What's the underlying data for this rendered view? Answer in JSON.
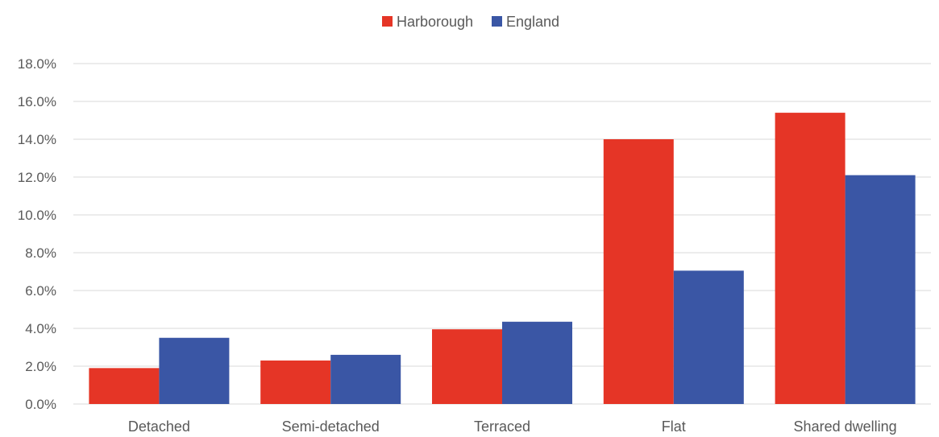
{
  "chart_data": {
    "type": "bar",
    "title": "",
    "xlabel": "",
    "ylabel": "",
    "categories": [
      "Detached",
      "Semi-detached",
      "Terraced",
      "Flat",
      "Shared dwelling"
    ],
    "series": [
      {
        "name": "Harborough",
        "color": "#e53526",
        "values": [
          1.9,
          2.3,
          3.95,
          14.0,
          15.4
        ]
      },
      {
        "name": "England",
        "color": "#3a56a5",
        "values": [
          3.5,
          2.6,
          4.35,
          7.05,
          12.1
        ]
      }
    ],
    "ylim": [
      0,
      18
    ],
    "yticks": [
      "0.0%",
      "2.0%",
      "4.0%",
      "6.0%",
      "8.0%",
      "10.0%",
      "12.0%",
      "14.0%",
      "16.0%",
      "18.0%"
    ],
    "grid": true,
    "legend_position": "top-center"
  }
}
